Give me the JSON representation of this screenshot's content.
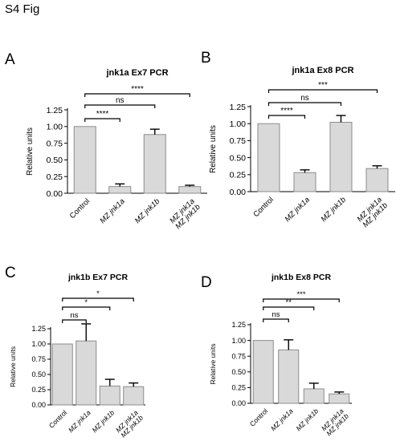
{
  "figure": {
    "title": "S4 Fig"
  },
  "colors": {
    "bar_fill": "#d9d9d9",
    "bar_stroke": "#8c8c8c",
    "axis": "#000000"
  },
  "chart_data": [
    {
      "letter": "A",
      "type": "bar",
      "title": "jnk1a Ex7 PCR",
      "ylabel": "Relative units",
      "ylim": [
        0,
        1.25
      ],
      "yticks": [
        "0.00",
        "0.25",
        "0.50",
        "0.75",
        "1.00",
        "1.25"
      ],
      "categories": [
        [
          "Control"
        ],
        [
          "MZ jnk1a"
        ],
        [
          "MZ jnk1b"
        ],
        [
          "MZ jnk1a",
          "MZ jnk1b"
        ]
      ],
      "values": [
        1.0,
        0.1,
        0.88,
        0.1
      ],
      "errors": [
        0.0,
        0.04,
        0.08,
        0.02
      ],
      "significance": [
        {
          "from": 0,
          "to": 1,
          "label": "****"
        },
        {
          "from": 0,
          "to": 2,
          "label": "ns"
        },
        {
          "from": 0,
          "to": 3,
          "label": "****"
        }
      ]
    },
    {
      "letter": "B",
      "type": "bar",
      "title": "jnk1a Ex8 PCR",
      "ylabel": "Relative units",
      "ylim": [
        0,
        1.25
      ],
      "yticks": [
        "0.00",
        "0.25",
        "0.50",
        "0.75",
        "1.00",
        "1.25"
      ],
      "categories": [
        [
          "Control"
        ],
        [
          "MZ jnk1a"
        ],
        [
          "MZ jnk1b"
        ],
        [
          "MZ jnk1a",
          "MZ jnk1b"
        ]
      ],
      "values": [
        1.0,
        0.28,
        1.02,
        0.34
      ],
      "errors": [
        0.0,
        0.04,
        0.1,
        0.04
      ],
      "significance": [
        {
          "from": 0,
          "to": 1,
          "label": "****"
        },
        {
          "from": 0,
          "to": 2,
          "label": "ns"
        },
        {
          "from": 0,
          "to": 3,
          "label": "***"
        }
      ]
    },
    {
      "letter": "C",
      "type": "bar",
      "title": "jnk1b Ex7 PCR",
      "ylabel": "Relative units",
      "ylim": [
        0,
        1.25
      ],
      "yticks": [
        "0.00",
        "0.25",
        "0.50",
        "0.75",
        "1.00",
        "1.25"
      ],
      "categories": [
        [
          "Control"
        ],
        [
          "MZ jnk1a"
        ],
        [
          "MZ jnk1b"
        ],
        [
          "MZ jnk1a",
          "MZ jnk1b"
        ]
      ],
      "values": [
        1.0,
        1.05,
        0.31,
        0.3
      ],
      "errors": [
        0.0,
        0.28,
        0.11,
        0.06
      ],
      "significance": [
        {
          "from": 0,
          "to": 1,
          "label": "ns"
        },
        {
          "from": 0,
          "to": 2,
          "label": "*"
        },
        {
          "from": 0,
          "to": 3,
          "label": "*"
        }
      ]
    },
    {
      "letter": "D",
      "type": "bar",
      "title": "jnk1b Ex8 PCR",
      "ylabel": "Relative units",
      "ylim": [
        0,
        1.25
      ],
      "yticks": [
        "0.00",
        "0.25",
        "0.50",
        "0.75",
        "1.00",
        "1.25"
      ],
      "categories": [
        [
          "Control"
        ],
        [
          "MZ jnk1a"
        ],
        [
          "MZ jnk1b"
        ],
        [
          "MZ jnk1a",
          "MZ jnk1b"
        ]
      ],
      "values": [
        1.0,
        0.85,
        0.23,
        0.15
      ],
      "errors": [
        0.0,
        0.16,
        0.09,
        0.03
      ],
      "significance": [
        {
          "from": 0,
          "to": 1,
          "label": "ns"
        },
        {
          "from": 0,
          "to": 2,
          "label": "**"
        },
        {
          "from": 0,
          "to": 3,
          "label": "***"
        }
      ]
    }
  ]
}
